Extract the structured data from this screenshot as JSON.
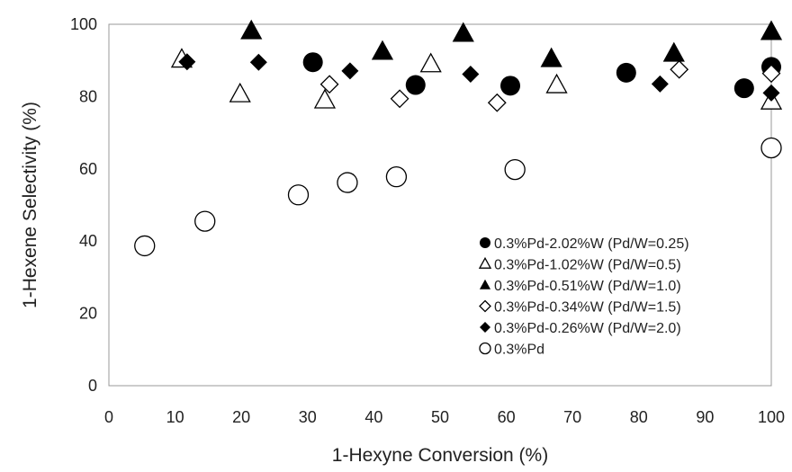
{
  "chart_data": {
    "type": "scatter",
    "xlabel": "1-Hexyne Conversion (%)",
    "ylabel": "1-Hexene Selectivity (%)",
    "xlim": [
      0,
      100
    ],
    "ylim": [
      0,
      100
    ],
    "xticks": [
      0,
      10,
      20,
      30,
      40,
      50,
      60,
      70,
      80,
      90,
      100
    ],
    "yticks": [
      0,
      20,
      40,
      60,
      80,
      100
    ],
    "grid": false,
    "legend_position": "bottom-right inside plot",
    "series": [
      {
        "name": "0.3%Pd-2.02%W (Pd/W=0.25)",
        "marker": "circle-filled",
        "color": "#000000",
        "points": [
          [
            30.8,
            89.5
          ],
          [
            46.3,
            83.2
          ],
          [
            60.6,
            83.0
          ],
          [
            78.1,
            86.6
          ],
          [
            95.9,
            82.3
          ],
          [
            100,
            88.2
          ]
        ]
      },
      {
        "name": "0.3%Pd-1.02%W (Pd/W=0.5)",
        "marker": "triangle-open",
        "color": "#000000",
        "points": [
          [
            11.0,
            90.3
          ],
          [
            19.8,
            80.7
          ],
          [
            32.6,
            79.0
          ],
          [
            48.6,
            89.0
          ],
          [
            67.6,
            83.2
          ],
          [
            100,
            78.7
          ]
        ]
      },
      {
        "name": "0.3%Pd-0.51%W (Pd/W=1.0)",
        "marker": "triangle-filled",
        "color": "#000000",
        "points": [
          [
            21.5,
            98.2
          ],
          [
            41.3,
            92.5
          ],
          [
            53.5,
            97.5
          ],
          [
            66.8,
            90.5
          ],
          [
            85.3,
            92.0
          ],
          [
            100,
            98.0
          ]
        ]
      },
      {
        "name": "0.3%Pd-0.34%W (Pd/W=1.5)",
        "marker": "diamond-open",
        "color": "#000000",
        "points": [
          [
            33.3,
            83.4
          ],
          [
            43.9,
            79.4
          ],
          [
            58.6,
            78.3
          ],
          [
            86.1,
            87.5
          ],
          [
            100,
            86.4
          ]
        ]
      },
      {
        "name": "0.3%Pd-0.26%W (Pd/W=2.0)",
        "marker": "diamond-filled",
        "color": "#000000",
        "points": [
          [
            11.8,
            89.6
          ],
          [
            22.6,
            89.5
          ],
          [
            36.4,
            87.1
          ],
          [
            54.6,
            86.2
          ],
          [
            83.2,
            83.5
          ],
          [
            100,
            81.0
          ]
        ]
      },
      {
        "name": "0.3%Pd",
        "marker": "circle-open",
        "color": "#000000",
        "points": [
          [
            5.4,
            38.7
          ],
          [
            14.5,
            45.5
          ],
          [
            28.6,
            52.8
          ],
          [
            36.0,
            56.2
          ],
          [
            43.4,
            57.8
          ],
          [
            61.3,
            59.8
          ],
          [
            100,
            65.8
          ]
        ]
      }
    ]
  }
}
